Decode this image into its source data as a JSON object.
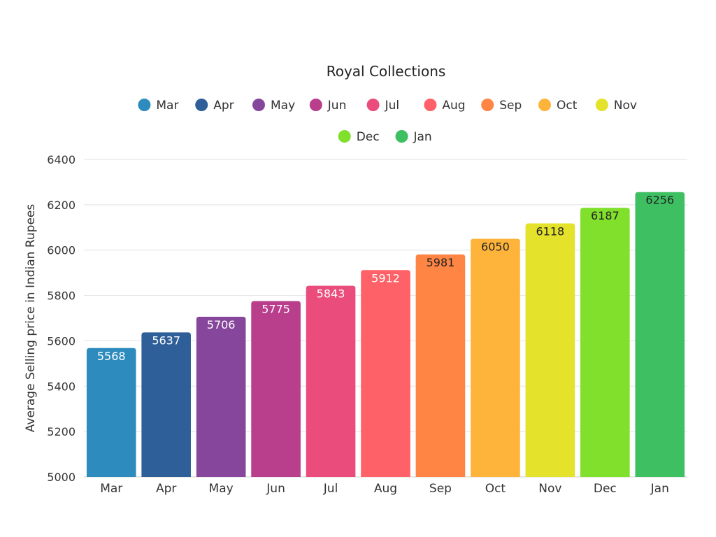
{
  "chart_data": {
    "type": "bar",
    "title": "Royal Collections",
    "xlabel": "",
    "ylabel": "Average Selling price in Indian Rupees",
    "categories": [
      "Mar",
      "Apr",
      "May",
      "Jun",
      "Jul",
      "Aug",
      "Sep",
      "Oct",
      "Nov",
      "Dec",
      "Jan"
    ],
    "values": [
      5568,
      5637,
      5706,
      5775,
      5843,
      5912,
      5981,
      6050,
      6118,
      6187,
      6256
    ],
    "colors": [
      "#2e8bbd",
      "#2e5f98",
      "#86469c",
      "#b93e8c",
      "#ea4c7c",
      "#fe6167",
      "#fe8543",
      "#feb43b",
      "#e4e22b",
      "#80e02c",
      "#3dbf62"
    ],
    "label_colors": [
      "#ffffff",
      "#ffffff",
      "#ffffff",
      "#ffffff",
      "#ffffff",
      "#ffffff",
      "#222222",
      "#222222",
      "#222222",
      "#222222",
      "#222222"
    ],
    "ylim": [
      5000,
      6400
    ],
    "yticks": [
      5000,
      5200,
      5400,
      5600,
      5800,
      6000,
      6200,
      6400
    ],
    "grid": true,
    "legend_position": "top"
  }
}
